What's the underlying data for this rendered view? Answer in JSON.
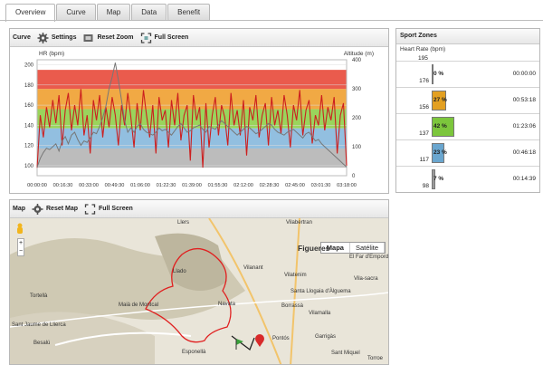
{
  "tabs": [
    {
      "label": "Overview",
      "active": true
    },
    {
      "label": "Curve",
      "active": false
    },
    {
      "label": "Map",
      "active": false
    },
    {
      "label": "Data",
      "active": false
    },
    {
      "label": "Benefit",
      "active": false
    }
  ],
  "curve_toolbar": {
    "title": "Curve",
    "settings": "Settings",
    "reset_zoom": "Reset Zoom",
    "full_screen": "Full Screen"
  },
  "map_toolbar": {
    "title": "Map",
    "reset_map": "Reset Map",
    "full_screen": "Full Screen"
  },
  "map_type": {
    "map": "Mapa",
    "satellite": "Satélite"
  },
  "map_labels": [
    "Llers",
    "Vilabertran",
    "Figueres",
    "Llado",
    "Vilanant",
    "Vilatenim",
    "El Far d'Empordà",
    "Vila-sacra",
    "Tortellà",
    "Maià de Montcal",
    "Navata",
    "Santa Llogaia d'Àlguema",
    "Borrassà",
    "Vilamalla",
    "Sant Jaume de Llierca",
    "Besalú",
    "Esponellà",
    "Pontós",
    "Garrigàs",
    "Sant Miquel",
    "Torroe"
  ],
  "sport_zones": {
    "title": "Sport Zones",
    "subtitle": "Heart Rate (bpm)",
    "top_value": "195",
    "zones": [
      {
        "low": "176",
        "pct": "0 %",
        "time": "00:00:00",
        "color": "#e23b2e",
        "fraction": 0.0
      },
      {
        "low": "156",
        "pct": "27 %",
        "time": "00:53:18",
        "color": "#e3a021",
        "fraction": 0.27
      },
      {
        "low": "137",
        "pct": "42 %",
        "time": "01:23:06",
        "color": "#7cc63c",
        "fraction": 0.42
      },
      {
        "low": "117",
        "pct": "23 %",
        "time": "00:46:18",
        "color": "#6aa6cf",
        "fraction": 0.23
      },
      {
        "low": "98",
        "pct": "7 %",
        "time": "00:14:39",
        "color": "#9a9a9a",
        "fraction": 0.07
      }
    ]
  },
  "chart_data": {
    "type": "line",
    "y_left_label": "HR (bpm)",
    "y_right_label": "Altitude (m)",
    "y_left_ticks": [
      100,
      120,
      140,
      160,
      180,
      200
    ],
    "y_right_ticks": [
      0,
      100,
      200,
      300,
      400
    ],
    "ylim_left": [
      90,
      205
    ],
    "ylim_right": [
      0,
      400
    ],
    "x_ticks": [
      "00:00:00",
      "00:16:30",
      "00:33:00",
      "00:49:30",
      "01:06:00",
      "01:22:30",
      "01:39:00",
      "01:55:30",
      "02:12:00",
      "02:28:30",
      "02:45:00",
      "03:01:30",
      "03:18:00"
    ],
    "zone_bands": [
      {
        "from": 176,
        "to": 195,
        "color": "#e8493a"
      },
      {
        "from": 156,
        "to": 176,
        "color": "#f0a030"
      },
      {
        "from": 137,
        "to": 156,
        "color": "#8fcf4a"
      },
      {
        "from": 117,
        "to": 137,
        "color": "#86b8dd"
      },
      {
        "from": 98,
        "to": 117,
        "color": "#b5b5b5"
      }
    ],
    "series": [
      {
        "name": "HR (bpm)",
        "axis": "left",
        "color": "#cc1f1f",
        "values": [
          98,
          150,
          128,
          158,
          138,
          165,
          142,
          170,
          120,
          155,
          172,
          135,
          160,
          140,
          176,
          130,
          150,
          112,
          165,
          145,
          170,
          128,
          158,
          138,
          168,
          150,
          120,
          160,
          140,
          172,
          148,
          118,
          162,
          135,
          175,
          150,
          128,
          160,
          112,
          168,
          145,
          155,
          118,
          165,
          140,
          172,
          125,
          150,
          160,
          105,
          170,
          145,
          158,
          98,
          162,
          118,
          150,
          168,
          130,
          160,
          148,
          120,
          172,
          140,
          155,
          130,
          165,
          110,
          158,
          145,
          170,
          128,
          150,
          162,
          120,
          168,
          140,
          155,
          132,
          170,
          150,
          118,
          160,
          145,
          175,
          130,
          155,
          165,
          122,
          150,
          140,
          170,
          135,
          158,
          145,
          168,
          112,
          150,
          162,
          100
        ]
      },
      {
        "name": "Altitude (m)",
        "axis": "right",
        "color": "#777777",
        "values": [
          30,
          60,
          80,
          95,
          90,
          100,
          110,
          85,
          120,
          135,
          110,
          140,
          150,
          125,
          105,
          120,
          115,
          130,
          150,
          145,
          170,
          200,
          240,
          300,
          340,
          390,
          330,
          260,
          190,
          150,
          165,
          150,
          170,
          180,
          160,
          150,
          145,
          140,
          150,
          165,
          155,
          160,
          150,
          140,
          155,
          170,
          180,
          165,
          150,
          155,
          165,
          170,
          175,
          160,
          150,
          170,
          165,
          160,
          175,
          190,
          180,
          170,
          160,
          150,
          140,
          150,
          160,
          170,
          165,
          155,
          145,
          150,
          160,
          170,
          180,
          175,
          160,
          150,
          145,
          140,
          150,
          155,
          160,
          150,
          140,
          130,
          145,
          150,
          135,
          120,
          125,
          110,
          100,
          90,
          80,
          70,
          60,
          50,
          40,
          30
        ]
      }
    ]
  }
}
